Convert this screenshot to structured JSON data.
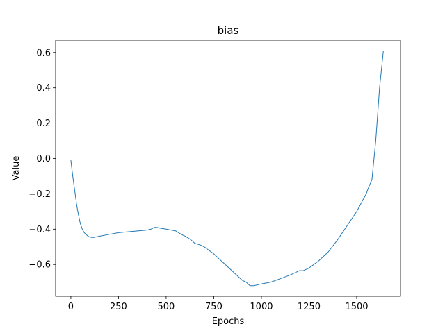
{
  "chart_data": {
    "type": "line",
    "title": "bias",
    "xlabel": "Epochs",
    "ylabel": "Value",
    "xlim": [
      -80,
      1730
    ],
    "ylim": [
      -0.78,
      0.67
    ],
    "xticks": [
      0,
      250,
      500,
      750,
      1000,
      1250,
      1500
    ],
    "xtick_labels": [
      "0",
      "250",
      "500",
      "750",
      "1000",
      "1250",
      "1500"
    ],
    "yticks": [
      -0.6,
      -0.4,
      -0.2,
      0.0,
      0.2,
      0.4,
      0.6
    ],
    "ytick_labels": [
      "−0.6",
      "−0.4",
      "−0.2",
      "0.0",
      "0.2",
      "0.4",
      "0.6"
    ],
    "grid": false,
    "line_color": "#1f77b4",
    "series": [
      {
        "x": [
          0,
          10,
          20,
          30,
          40,
          50,
          60,
          70,
          80,
          90,
          100,
          110,
          120,
          150,
          200,
          250,
          300,
          350,
          400,
          420,
          440,
          450,
          470,
          500,
          550,
          580,
          600,
          630,
          650,
          680,
          700,
          750,
          780,
          800,
          850,
          880,
          900,
          920,
          940,
          960,
          1000,
          1050,
          1100,
          1150,
          1200,
          1220,
          1250,
          1300,
          1350,
          1400,
          1450,
          1500,
          1550,
          1560,
          1580,
          1600,
          1620,
          1640
        ],
        "y": [
          -0.01,
          -0.1,
          -0.18,
          -0.26,
          -0.32,
          -0.37,
          -0.4,
          -0.42,
          -0.43,
          -0.44,
          -0.445,
          -0.447,
          -0.447,
          -0.44,
          -0.43,
          -0.42,
          -0.415,
          -0.41,
          -0.405,
          -0.4,
          -0.39,
          -0.39,
          -0.395,
          -0.4,
          -0.41,
          -0.43,
          -0.44,
          -0.46,
          -0.48,
          -0.49,
          -0.5,
          -0.54,
          -0.57,
          -0.59,
          -0.64,
          -0.67,
          -0.69,
          -0.7,
          -0.72,
          -0.72,
          -0.71,
          -0.7,
          -0.68,
          -0.66,
          -0.635,
          -0.635,
          -0.62,
          -0.58,
          -0.53,
          -0.46,
          -0.38,
          -0.3,
          -0.2,
          -0.17,
          -0.12,
          0.1,
          0.4,
          0.61
        ]
      }
    ]
  }
}
